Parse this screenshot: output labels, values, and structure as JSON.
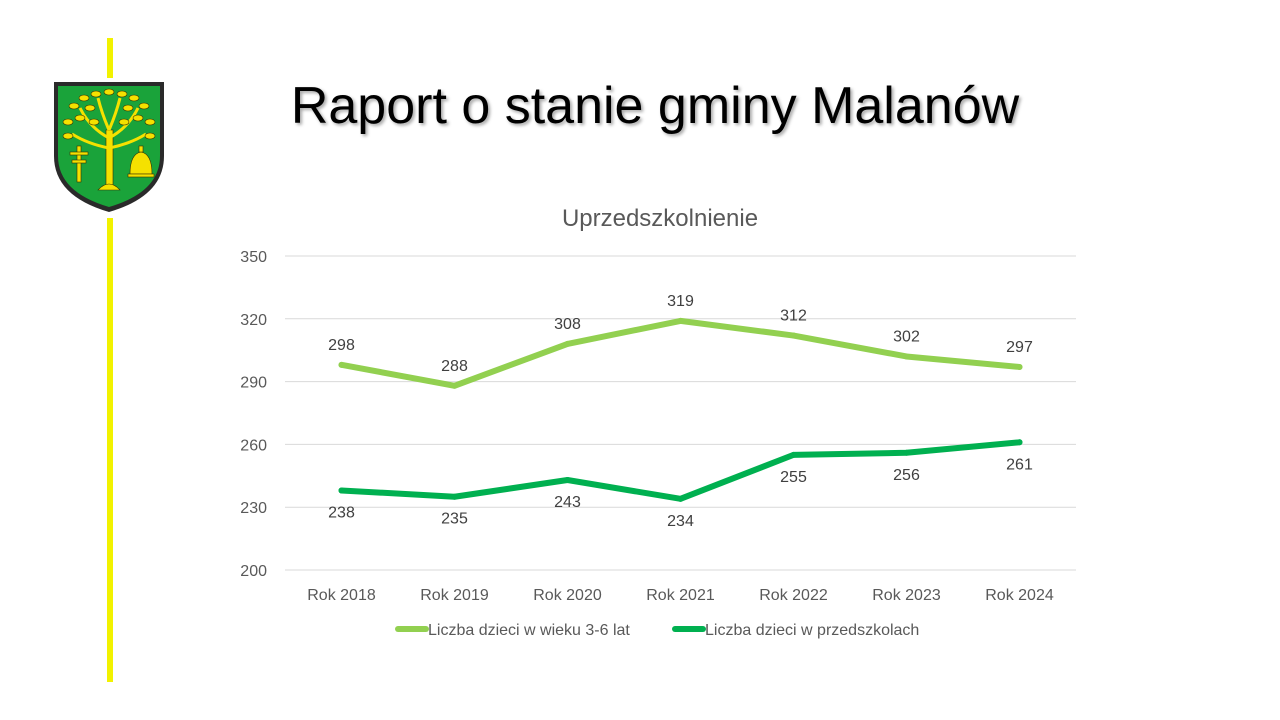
{
  "slide": {
    "title": "Raport o stanie gminy Malanów",
    "accent_yellow": "#f2f200",
    "crest_icon": "malanow-coat-of-arms-icon"
  },
  "chart_data": {
    "type": "line",
    "title": "Uprzedszkolnienie",
    "categories": [
      "Rok 2018",
      "Rok 2019",
      "Rok 2020",
      "Rok 2021",
      "Rok 2022",
      "Rok 2023",
      "Rok 2024"
    ],
    "series": [
      {
        "name": "Liczba dzieci w wieku 3-6 lat",
        "values": [
          298,
          288,
          308,
          319,
          312,
          302,
          297
        ],
        "color": "#92d050",
        "label_position": "above"
      },
      {
        "name": "Liczba dzieci w przedszkolach",
        "values": [
          238,
          235,
          243,
          234,
          255,
          256,
          261
        ],
        "color": "#00b050",
        "label_position": "below"
      }
    ],
    "ylim": [
      200,
      350
    ],
    "yticks": [
      200,
      230,
      260,
      290,
      320,
      350
    ],
    "grid": true,
    "legend": "bottom",
    "xlabel": "",
    "ylabel": ""
  }
}
